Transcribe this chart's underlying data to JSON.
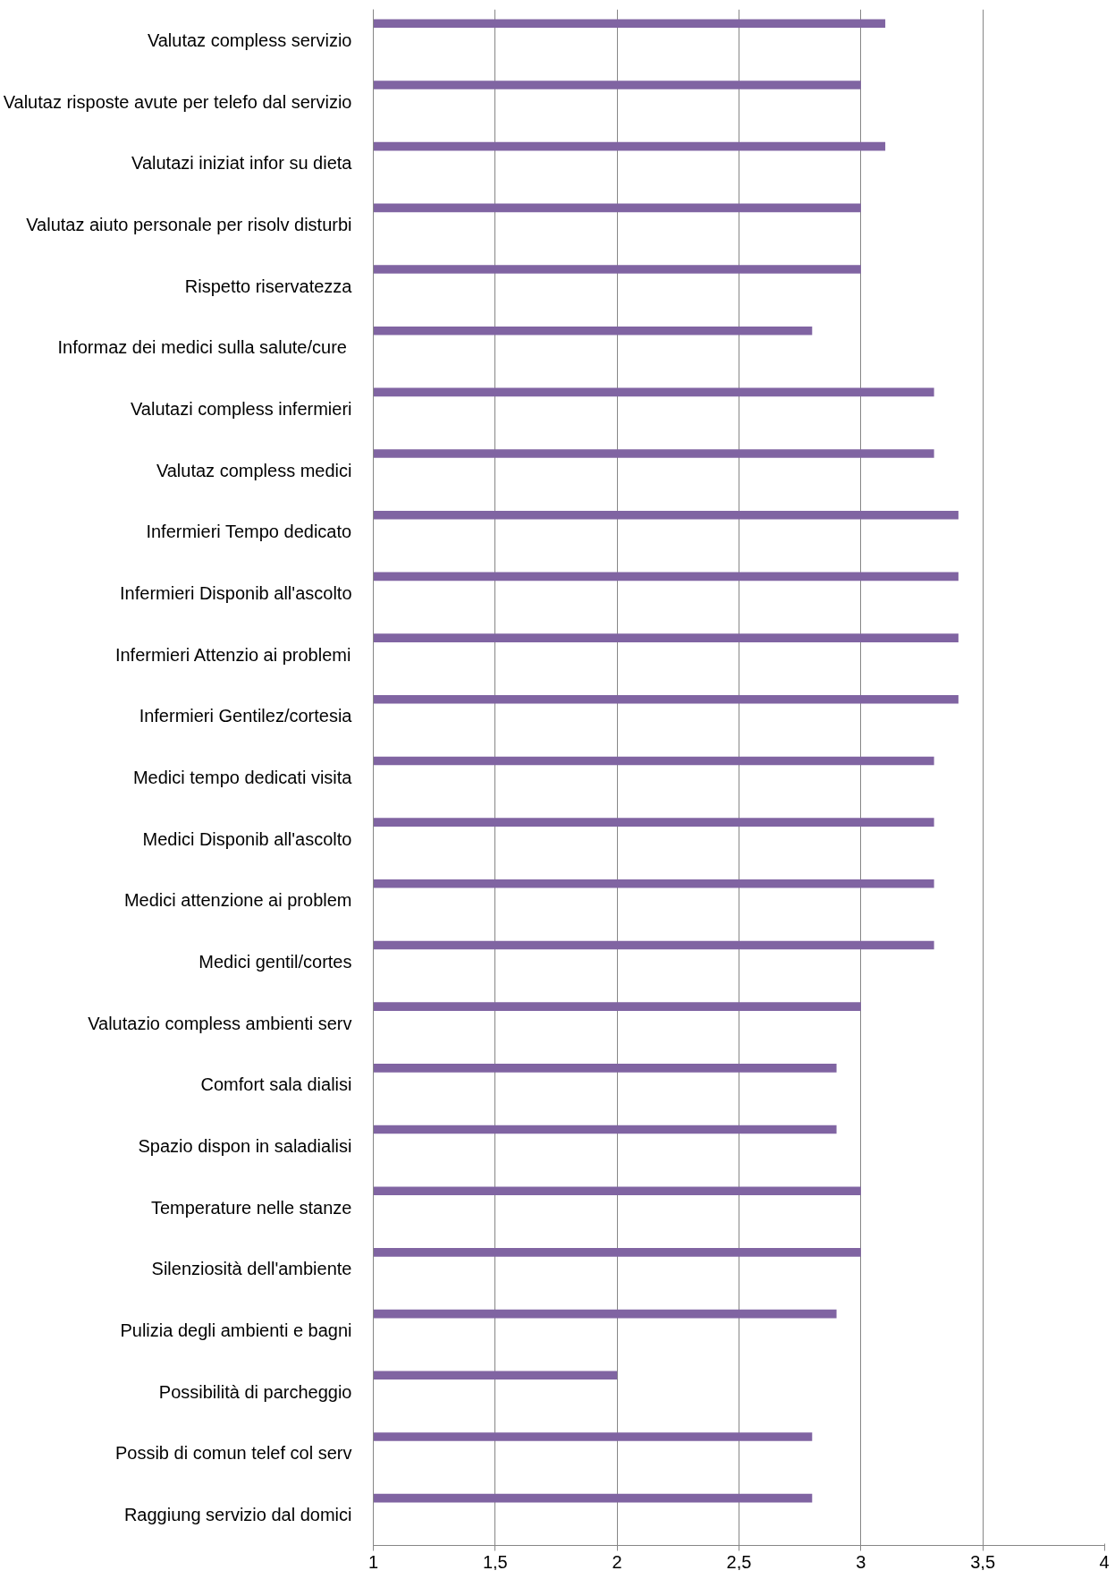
{
  "chart_data": {
    "type": "bar",
    "orientation": "horizontal",
    "categories": [
      "Valutaz compless servizio",
      "Valutaz risposte avute per telefo dal servizio",
      "Valutazi iniziat infor su dieta",
      "Valutaz aiuto personale per risolv disturbi",
      "Rispetto riservatezza",
      "Informaz dei medici  sulla salute/cure",
      "Valutazi compless infermieri",
      "Valutaz compless medici",
      "Infermieri Tempo dedicato",
      "Infermieri Disponib all'ascolto",
      "Infermieri Attenzio ai problemi",
      "Infermieri Gentilez/cortesia",
      "Medici tempo dedicati visita",
      "Medici Disponib all'ascolto",
      "Medici attenzione ai problem",
      "Medici gentil/cortes",
      "Valutazio compless ambienti serv",
      "Comfort sala dialisi",
      "Spazio dispon in saladialisi",
      "Temperature nelle stanze",
      "Silenziosità dell'ambiente",
      "Pulizia degli ambienti e bagni",
      "Possibilità di parcheggio",
      "Possib di comun telef col serv",
      "Raggiung servizio dal domici"
    ],
    "values": [
      3.1,
      3.0,
      3.1,
      3.0,
      3.0,
      2.8,
      3.3,
      3.3,
      3.4,
      3.4,
      3.4,
      3.4,
      3.3,
      3.3,
      3.3,
      3.3,
      3.0,
      2.9,
      2.9,
      3.0,
      3.0,
      2.9,
      2.0,
      2.8,
      2.8
    ],
    "color": "#8064a2",
    "xlim": [
      1,
      4
    ],
    "xticks": [
      1,
      {
        "value": 1.5,
        "label": "1,5"
      },
      2,
      {
        "value": 2.5,
        "label": "2,5"
      },
      3,
      {
        "value": 3.5,
        "label": "3,5"
      },
      4
    ],
    "grid": "x"
  }
}
